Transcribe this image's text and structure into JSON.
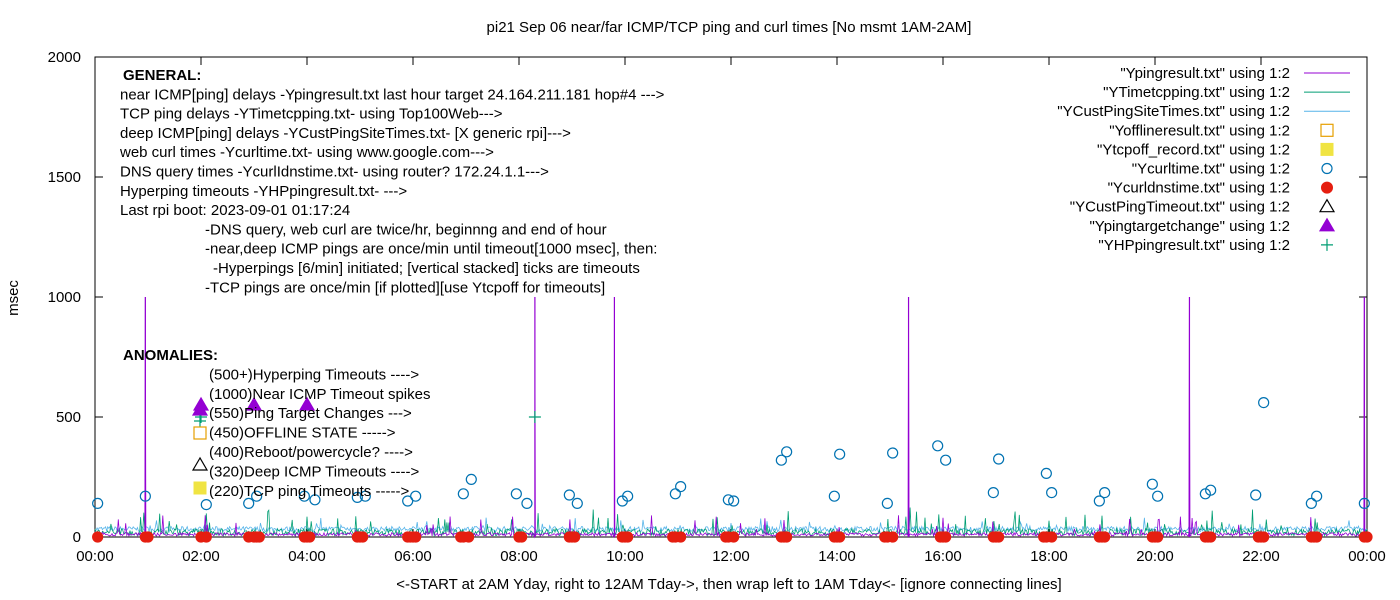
{
  "chart_data": {
    "type": "line",
    "title": "pi21 Sep 06  near/far ICMP/TCP ping and curl times [No msmt 1AM-2AM]",
    "xlabel": "<-START at 2AM Yday, right to 12AM Tday->, then wrap left to 1AM Tday<- [ignore connecting lines]",
    "ylabel": "msec",
    "xlim": [
      0,
      24
    ],
    "ylim": [
      0,
      2000
    ],
    "x_ticks": [
      "00:00",
      "02:00",
      "04:00",
      "06:00",
      "08:00",
      "10:00",
      "12:00",
      "14:00",
      "16:00",
      "18:00",
      "20:00",
      "22:00",
      "00:00"
    ],
    "y_ticks": [
      "0",
      "500",
      "1000",
      "1500",
      "2000"
    ],
    "grid": false,
    "legend_position": "top-right",
    "legend": [
      {
        "label": "\"Ypingresult.txt\" using 1:2",
        "style": "line",
        "color": "#9400d3"
      },
      {
        "label": "\"YTimetcpping.txt\" using 1:2",
        "style": "line",
        "color": "#009e73"
      },
      {
        "label": "\"YCustPingSiteTimes.txt\" using 1:2",
        "style": "line",
        "color": "#56b4e9"
      },
      {
        "label": "\"Yofflineresult.txt\" using 1:2",
        "style": "open-square",
        "color": "#e69f00"
      },
      {
        "label": "\"Ytcpoff_record.txt\" using 1:2",
        "style": "filled-square",
        "color": "#f0e442"
      },
      {
        "label": "\"Ycurltime.txt\" using 1:2",
        "style": "open-circle",
        "color": "#0072b2"
      },
      {
        "label": "\"Ycurldnstime.txt\" using 1:2",
        "style": "filled-circle",
        "color": "#e51e10"
      },
      {
        "label": "\"YCustPingTimeout.txt\" using 1:2",
        "style": "open-triangle",
        "color": "#000000"
      },
      {
        "label": "\"Ypingtargetchange\" using 1:2",
        "style": "filled-triangle",
        "color": "#9400d3"
      },
      {
        "label": "\"YHPpingresult.txt\" using 1:2",
        "style": "plus",
        "color": "#009e73"
      }
    ],
    "general_notes": [
      "GENERAL:",
      "near ICMP[ping] delays -Ypingresult.txt last hour target 24.164.211.181 hop#4 --->",
      "TCP ping delays -YTimetcpping.txt- using Top100Web--->",
      "deep ICMP[ping] delays -YCustPingSiteTimes.txt- [X generic rpi]--->",
      "web curl times -Ycurltime.txt- using www.google.com--->",
      "DNS query times -YcurlIdnstime.txt- using router? 172.24.1.1--->",
      "Hyperping timeouts -YHPpingresult.txt- --->",
      "Last rpi boot: 2023-09-01 01:17:24",
      "-DNS query, web curl are twice/hr, beginnng and end of hour",
      "-near,deep ICMP pings are once/min until timeout[1000 msec], then:",
      "-Hyperpings [6/min] initiated; [vertical stacked] ticks are timeouts",
      "-TCP pings are once/min [if plotted][use Ytcpoff for timeouts]"
    ],
    "anomalies": [
      "ANOMALIES:",
      "(500+)Hyperping Timeouts ---->",
      "(1000)Near ICMP Timeout spikes",
      "(550)Ping Target Changes --->",
      "(450)OFFLINE STATE ----->",
      "(400)Reboot/powercycle? ---->",
      "(320)Deep ICMP Timeouts ---->",
      "(220)TCP ping Timeouts ----->"
    ],
    "near_icmp_spikes": [
      [
        0.95,
        1000
      ],
      [
        8.3,
        1000
      ],
      [
        9.8,
        1000
      ],
      [
        15.35,
        1000
      ],
      [
        20.65,
        1000
      ],
      [
        23.95,
        1000
      ]
    ],
    "hyperping_points": [
      [
        2.0,
        500
      ],
      [
        8.3,
        500
      ]
    ],
    "ping_target_changes": [
      [
        2.0,
        550
      ],
      [
        3.0,
        550
      ],
      [
        4.0,
        550
      ]
    ],
    "curl_times": [
      [
        0.05,
        140
      ],
      [
        0.95,
        170
      ],
      [
        2.1,
        135
      ],
      [
        2.9,
        140
      ],
      [
        3.05,
        170
      ],
      [
        3.95,
        170
      ],
      [
        4.15,
        155
      ],
      [
        4.95,
        165
      ],
      [
        5.1,
        170
      ],
      [
        5.9,
        150
      ],
      [
        6.05,
        170
      ],
      [
        6.95,
        180
      ],
      [
        7.1,
        240
      ],
      [
        7.95,
        180
      ],
      [
        8.15,
        140
      ],
      [
        8.95,
        175
      ],
      [
        9.1,
        140
      ],
      [
        9.95,
        150
      ],
      [
        10.05,
        170
      ],
      [
        10.95,
        180
      ],
      [
        11.05,
        210
      ],
      [
        11.95,
        155
      ],
      [
        12.05,
        150
      ],
      [
        12.95,
        320
      ],
      [
        13.05,
        355
      ],
      [
        13.95,
        170
      ],
      [
        14.05,
        345
      ],
      [
        14.95,
        140
      ],
      [
        15.05,
        350
      ],
      [
        15.9,
        380
      ],
      [
        16.05,
        320
      ],
      [
        16.95,
        185
      ],
      [
        17.05,
        325
      ],
      [
        17.95,
        265
      ],
      [
        18.05,
        185
      ],
      [
        18.95,
        150
      ],
      [
        19.05,
        185
      ],
      [
        19.95,
        220
      ],
      [
        20.05,
        170
      ],
      [
        20.95,
        180
      ],
      [
        21.05,
        195
      ],
      [
        21.9,
        175
      ],
      [
        22.05,
        560
      ],
      [
        22.95,
        140
      ],
      [
        23.05,
        170
      ],
      [
        23.95,
        140
      ]
    ],
    "dns_times": [
      0.05,
      0.95,
      1.0,
      2.0,
      2.1,
      2.9,
      3.0,
      3.05,
      3.1,
      3.95,
      4.0,
      4.05,
      4.95,
      5.0,
      5.05,
      5.9,
      5.95,
      6.0,
      6.05,
      6.9,
      6.95,
      7.05,
      8.0,
      8.05,
      8.95,
      9.0,
      9.05,
      9.95,
      10.0,
      10.05,
      10.9,
      10.95,
      11.05,
      11.9,
      11.95,
      12.05,
      12.95,
      13.0,
      13.05,
      13.95,
      14.0,
      14.05,
      14.9,
      14.95,
      15.05,
      15.95,
      16.0,
      16.05,
      16.95,
      17.0,
      17.05,
      17.9,
      17.95,
      18.05,
      18.95,
      19.0,
      19.05,
      19.95,
      20.0,
      20.05,
      20.95,
      21.0,
      21.05,
      21.95,
      22.0,
      22.05,
      22.95,
      23.0,
      23.05,
      23.95,
      24.0
    ]
  }
}
